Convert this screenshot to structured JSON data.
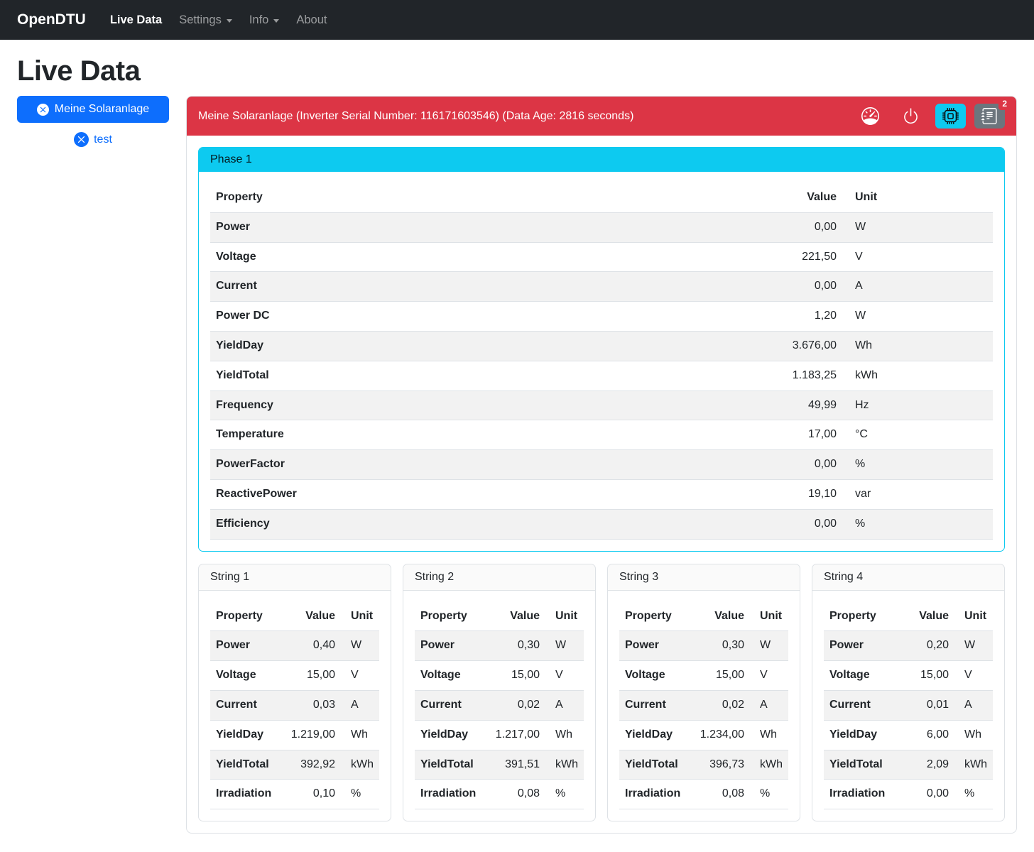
{
  "navbar": {
    "brand": "OpenDTU",
    "items": [
      {
        "label": "Live Data"
      },
      {
        "label": "Settings"
      },
      {
        "label": "Info"
      },
      {
        "label": "About"
      }
    ]
  },
  "page_title": "Live Data",
  "sidebar": {
    "inverter_button_label": "Meine Solaranlage",
    "secondary_link_label": "test"
  },
  "inverter_card": {
    "header": "Meine Solaranlage (Inverter Serial Number: 116171603546) (Data Age: 2816 seconds)",
    "toolbar": {
      "icons": [
        "speedometer-icon",
        "power-icon",
        "cpu-icon",
        "journal-text-icon"
      ],
      "badge_count": "2"
    },
    "phase": {
      "title": "Phase 1",
      "columns": [
        "Property",
        "Value",
        "Unit"
      ],
      "rows": [
        [
          "Power",
          "0,00",
          "W"
        ],
        [
          "Voltage",
          "221,50",
          "V"
        ],
        [
          "Current",
          "0,00",
          "A"
        ],
        [
          "Power DC",
          "1,20",
          "W"
        ],
        [
          "YieldDay",
          "3.676,00",
          "Wh"
        ],
        [
          "YieldTotal",
          "1.183,25",
          "kWh"
        ],
        [
          "Frequency",
          "49,99",
          "Hz"
        ],
        [
          "Temperature",
          "17,00",
          "°C"
        ],
        [
          "PowerFactor",
          "0,00",
          "%"
        ],
        [
          "ReactivePower",
          "19,10",
          "var"
        ],
        [
          "Efficiency",
          "0,00",
          "%"
        ]
      ]
    },
    "strings": [
      {
        "title": "String 1",
        "columns": [
          "Property",
          "Value",
          "Unit"
        ],
        "rows": [
          [
            "Power",
            "0,40",
            "W"
          ],
          [
            "Voltage",
            "15,00",
            "V"
          ],
          [
            "Current",
            "0,03",
            "A"
          ],
          [
            "YieldDay",
            "1.219,00",
            "Wh"
          ],
          [
            "YieldTotal",
            "392,92",
            "kWh"
          ],
          [
            "Irradiation",
            "0,10",
            "%"
          ]
        ]
      },
      {
        "title": "String 2",
        "columns": [
          "Property",
          "Value",
          "Unit"
        ],
        "rows": [
          [
            "Power",
            "0,30",
            "W"
          ],
          [
            "Voltage",
            "15,00",
            "V"
          ],
          [
            "Current",
            "0,02",
            "A"
          ],
          [
            "YieldDay",
            "1.217,00",
            "Wh"
          ],
          [
            "YieldTotal",
            "391,51",
            "kWh"
          ],
          [
            "Irradiation",
            "0,08",
            "%"
          ]
        ]
      },
      {
        "title": "String 3",
        "columns": [
          "Property",
          "Value",
          "Unit"
        ],
        "rows": [
          [
            "Power",
            "0,30",
            "W"
          ],
          [
            "Voltage",
            "15,00",
            "V"
          ],
          [
            "Current",
            "0,02",
            "A"
          ],
          [
            "YieldDay",
            "1.234,00",
            "Wh"
          ],
          [
            "YieldTotal",
            "396,73",
            "kWh"
          ],
          [
            "Irradiation",
            "0,08",
            "%"
          ]
        ]
      },
      {
        "title": "String 4",
        "columns": [
          "Property",
          "Value",
          "Unit"
        ],
        "rows": [
          [
            "Power",
            "0,20",
            "W"
          ],
          [
            "Voltage",
            "15,00",
            "V"
          ],
          [
            "Current",
            "0,01",
            "A"
          ],
          [
            "YieldDay",
            "6,00",
            "Wh"
          ],
          [
            "YieldTotal",
            "2,09",
            "kWh"
          ],
          [
            "Irradiation",
            "0,00",
            "%"
          ]
        ]
      }
    ]
  },
  "colors": {
    "navbar_bg": "#212529",
    "primary": "#0d6efd",
    "danger": "#dc3545",
    "info": "#0dcaf0",
    "secondary": "#6c757d"
  }
}
